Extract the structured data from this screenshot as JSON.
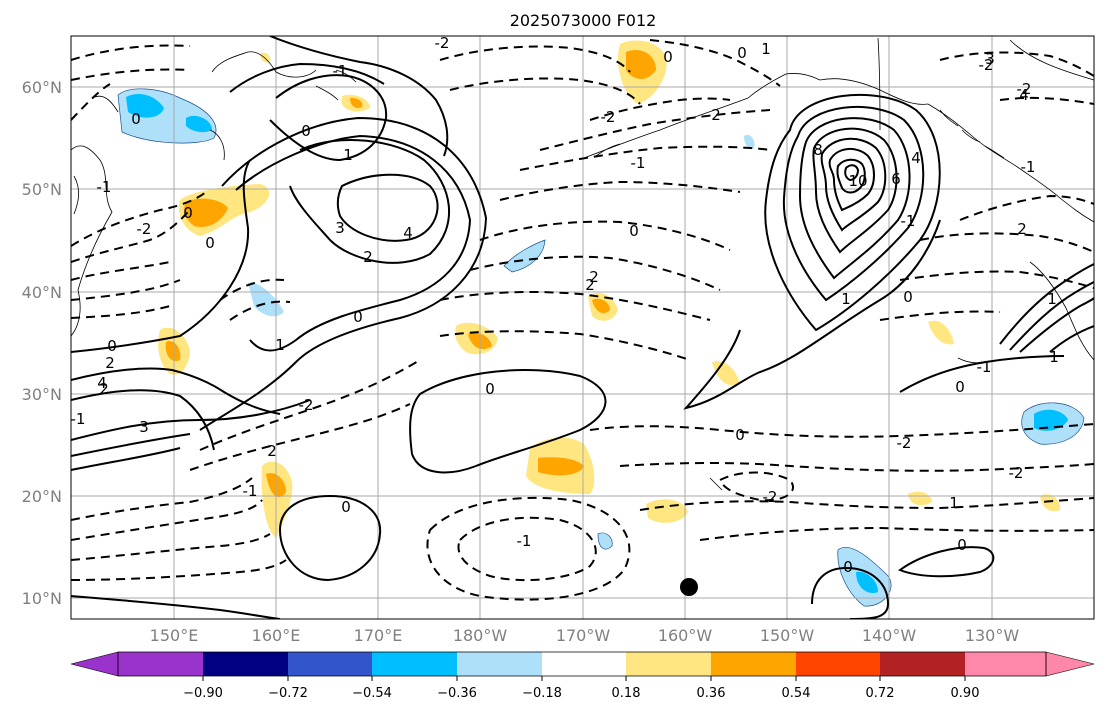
{
  "title": "2025073000 F012",
  "map": {
    "lat_labels": [
      "60°N",
      "50°N",
      "40°N",
      "30°N",
      "20°N",
      "10°N"
    ],
    "lon_labels": [
      "150°E",
      "160°E",
      "170°E",
      "180°W",
      "170°W",
      "160°W",
      "150°W",
      "140°W",
      "130°W"
    ],
    "gridline_color": "#a9a9a9",
    "coastline_color": "#000000",
    "contour_color": "#000000"
  },
  "contour_labels": [
    "0",
    "1",
    "2",
    "-1",
    "-2",
    "0",
    "3",
    "4",
    "2",
    "0",
    "0",
    "-2",
    "2",
    "-1",
    "3",
    "4",
    "0",
    "-2",
    "-1",
    "0",
    "-2",
    "2",
    "0",
    "2",
    "8",
    "10",
    "6",
    "4",
    "1",
    "-1",
    "0",
    "2",
    "1",
    "1",
    "0",
    "-1",
    "0",
    "-1",
    "0",
    "-2",
    "1",
    "-2",
    "0",
    "-2",
    "-2",
    "1",
    "0",
    "0",
    "-1",
    "0",
    "1",
    "2",
    "-2",
    "0",
    "4",
    "3",
    "-1",
    "2",
    "-1"
  ],
  "colorbar": {
    "colors": [
      "#9933cc",
      "#000080",
      "#3355cc",
      "#00bfff",
      "#aee0fa",
      "#ffffff",
      "#ffe680",
      "#ffa500",
      "#ff4500",
      "#b22222",
      "#ff88aa"
    ],
    "tick_labels": [
      "−0.90",
      "−0.72",
      "−0.54",
      "−0.36",
      "−0.18",
      "0.18",
      "0.36",
      "0.54",
      "0.72",
      "0.90"
    ]
  }
}
